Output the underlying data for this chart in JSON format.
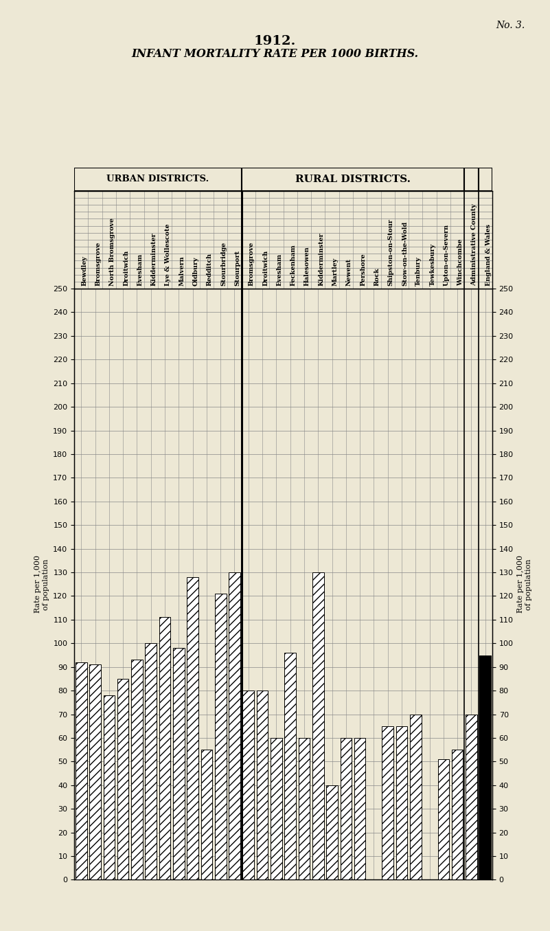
{
  "title_year": "1912.",
  "title_main": "INFANT MORTALITY RATE PER 1000 BIRTHS.",
  "no_label": "No. 3.",
  "urban_label": "URBAN DISTRICTS.",
  "rural_label": "RURAL DISTRICTS.",
  "left_ylabel": "Rate per 1,000\nof population",
  "right_ylabel": "Rate per 1,000\nof population",
  "england_wales_label": "England & Wales",
  "admin_county_label": "Administrative County",
  "urban_bars": [
    {
      "name": "Bewdley",
      "value": 92
    },
    {
      "name": "Bromsgrove",
      "value": 91
    },
    {
      "name": "North Bromsgrove",
      "value": 78
    },
    {
      "name": "Droitwich",
      "value": 85
    },
    {
      "name": "Evesham",
      "value": 93
    },
    {
      "name": "Kidderminster",
      "value": 100
    },
    {
      "name": "Lye & Wollescote",
      "value": 111
    },
    {
      "name": "Malvern",
      "value": 98
    },
    {
      "name": "Oldbury",
      "value": 128
    },
    {
      "name": "Redditch",
      "value": 55
    },
    {
      "name": "Stourbridge",
      "value": 121
    },
    {
      "name": "Stourport",
      "value": 130
    }
  ],
  "rural_bars": [
    {
      "name": "Bromsgrove",
      "value": 80
    },
    {
      "name": "Droitwich",
      "value": 80
    },
    {
      "name": "Evesham",
      "value": 60
    },
    {
      "name": "Feckenham",
      "value": 96
    },
    {
      "name": "Halesowen",
      "value": 60
    },
    {
      "name": "Kidderminster",
      "value": 130
    },
    {
      "name": "Martley",
      "value": 40
    },
    {
      "name": "Newent",
      "value": 60
    },
    {
      "name": "Pershore",
      "value": 60
    },
    {
      "name": "Rock",
      "value": 0
    },
    {
      "name": "Shipston-on-Stour",
      "value": 65
    },
    {
      "name": "Stow-on-the-Wold",
      "value": 65
    },
    {
      "name": "Tenbury",
      "value": 70
    },
    {
      "name": "Tewkesbury",
      "value": 0
    },
    {
      "name": "Upton-on-Severn",
      "value": 51
    },
    {
      "name": "Winchcombe",
      "value": 55
    }
  ],
  "admin_county_value": 70,
  "england_wales_value": 95,
  "ylim_min": 0,
  "ylim_max": 250,
  "ytick_step": 10,
  "bg_color": "#ede8d5",
  "grid_color": "#888888",
  "bar_edge_color": "#000000",
  "black_bar_color": "#000000",
  "hatched_bar_facecolor": "#ffffff",
  "bar_hatch": "//"
}
